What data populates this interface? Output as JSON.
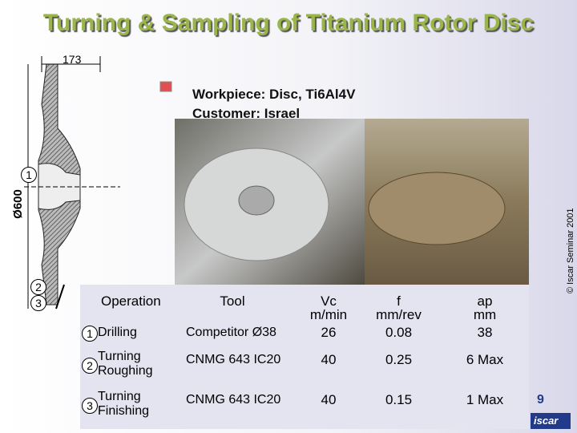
{
  "header": {
    "title": "Turning & Sampling of Titanium Rotor Disc"
  },
  "drawing": {
    "width_label": "173",
    "diameter_label": "Ø600",
    "callouts": [
      "1",
      "2",
      "3"
    ]
  },
  "info": {
    "lines": [
      "Workpiece: Disc, Ti6Al4V",
      "Customer: Israel"
    ]
  },
  "table": {
    "headers": [
      "Operation",
      "Tool",
      "Vc\nm/min",
      "f\nmm/rev",
      "ap\nmm"
    ],
    "rows": [
      [
        "1",
        "Drilling",
        "Competitor Ø38",
        "26",
        "0.08",
        "38"
      ],
      [
        "2",
        "Turning\nRoughing",
        "CNMG 643 IC20",
        "40",
        "0.25",
        "6 Max"
      ],
      [
        "3",
        "Turning\nFinishing",
        "CNMG 643 IC20",
        "40",
        "0.15",
        "1 Max"
      ]
    ]
  },
  "footer": {
    "page": "9",
    "copyright": "© Iscar Seminar 2001",
    "logo": "iscar"
  }
}
